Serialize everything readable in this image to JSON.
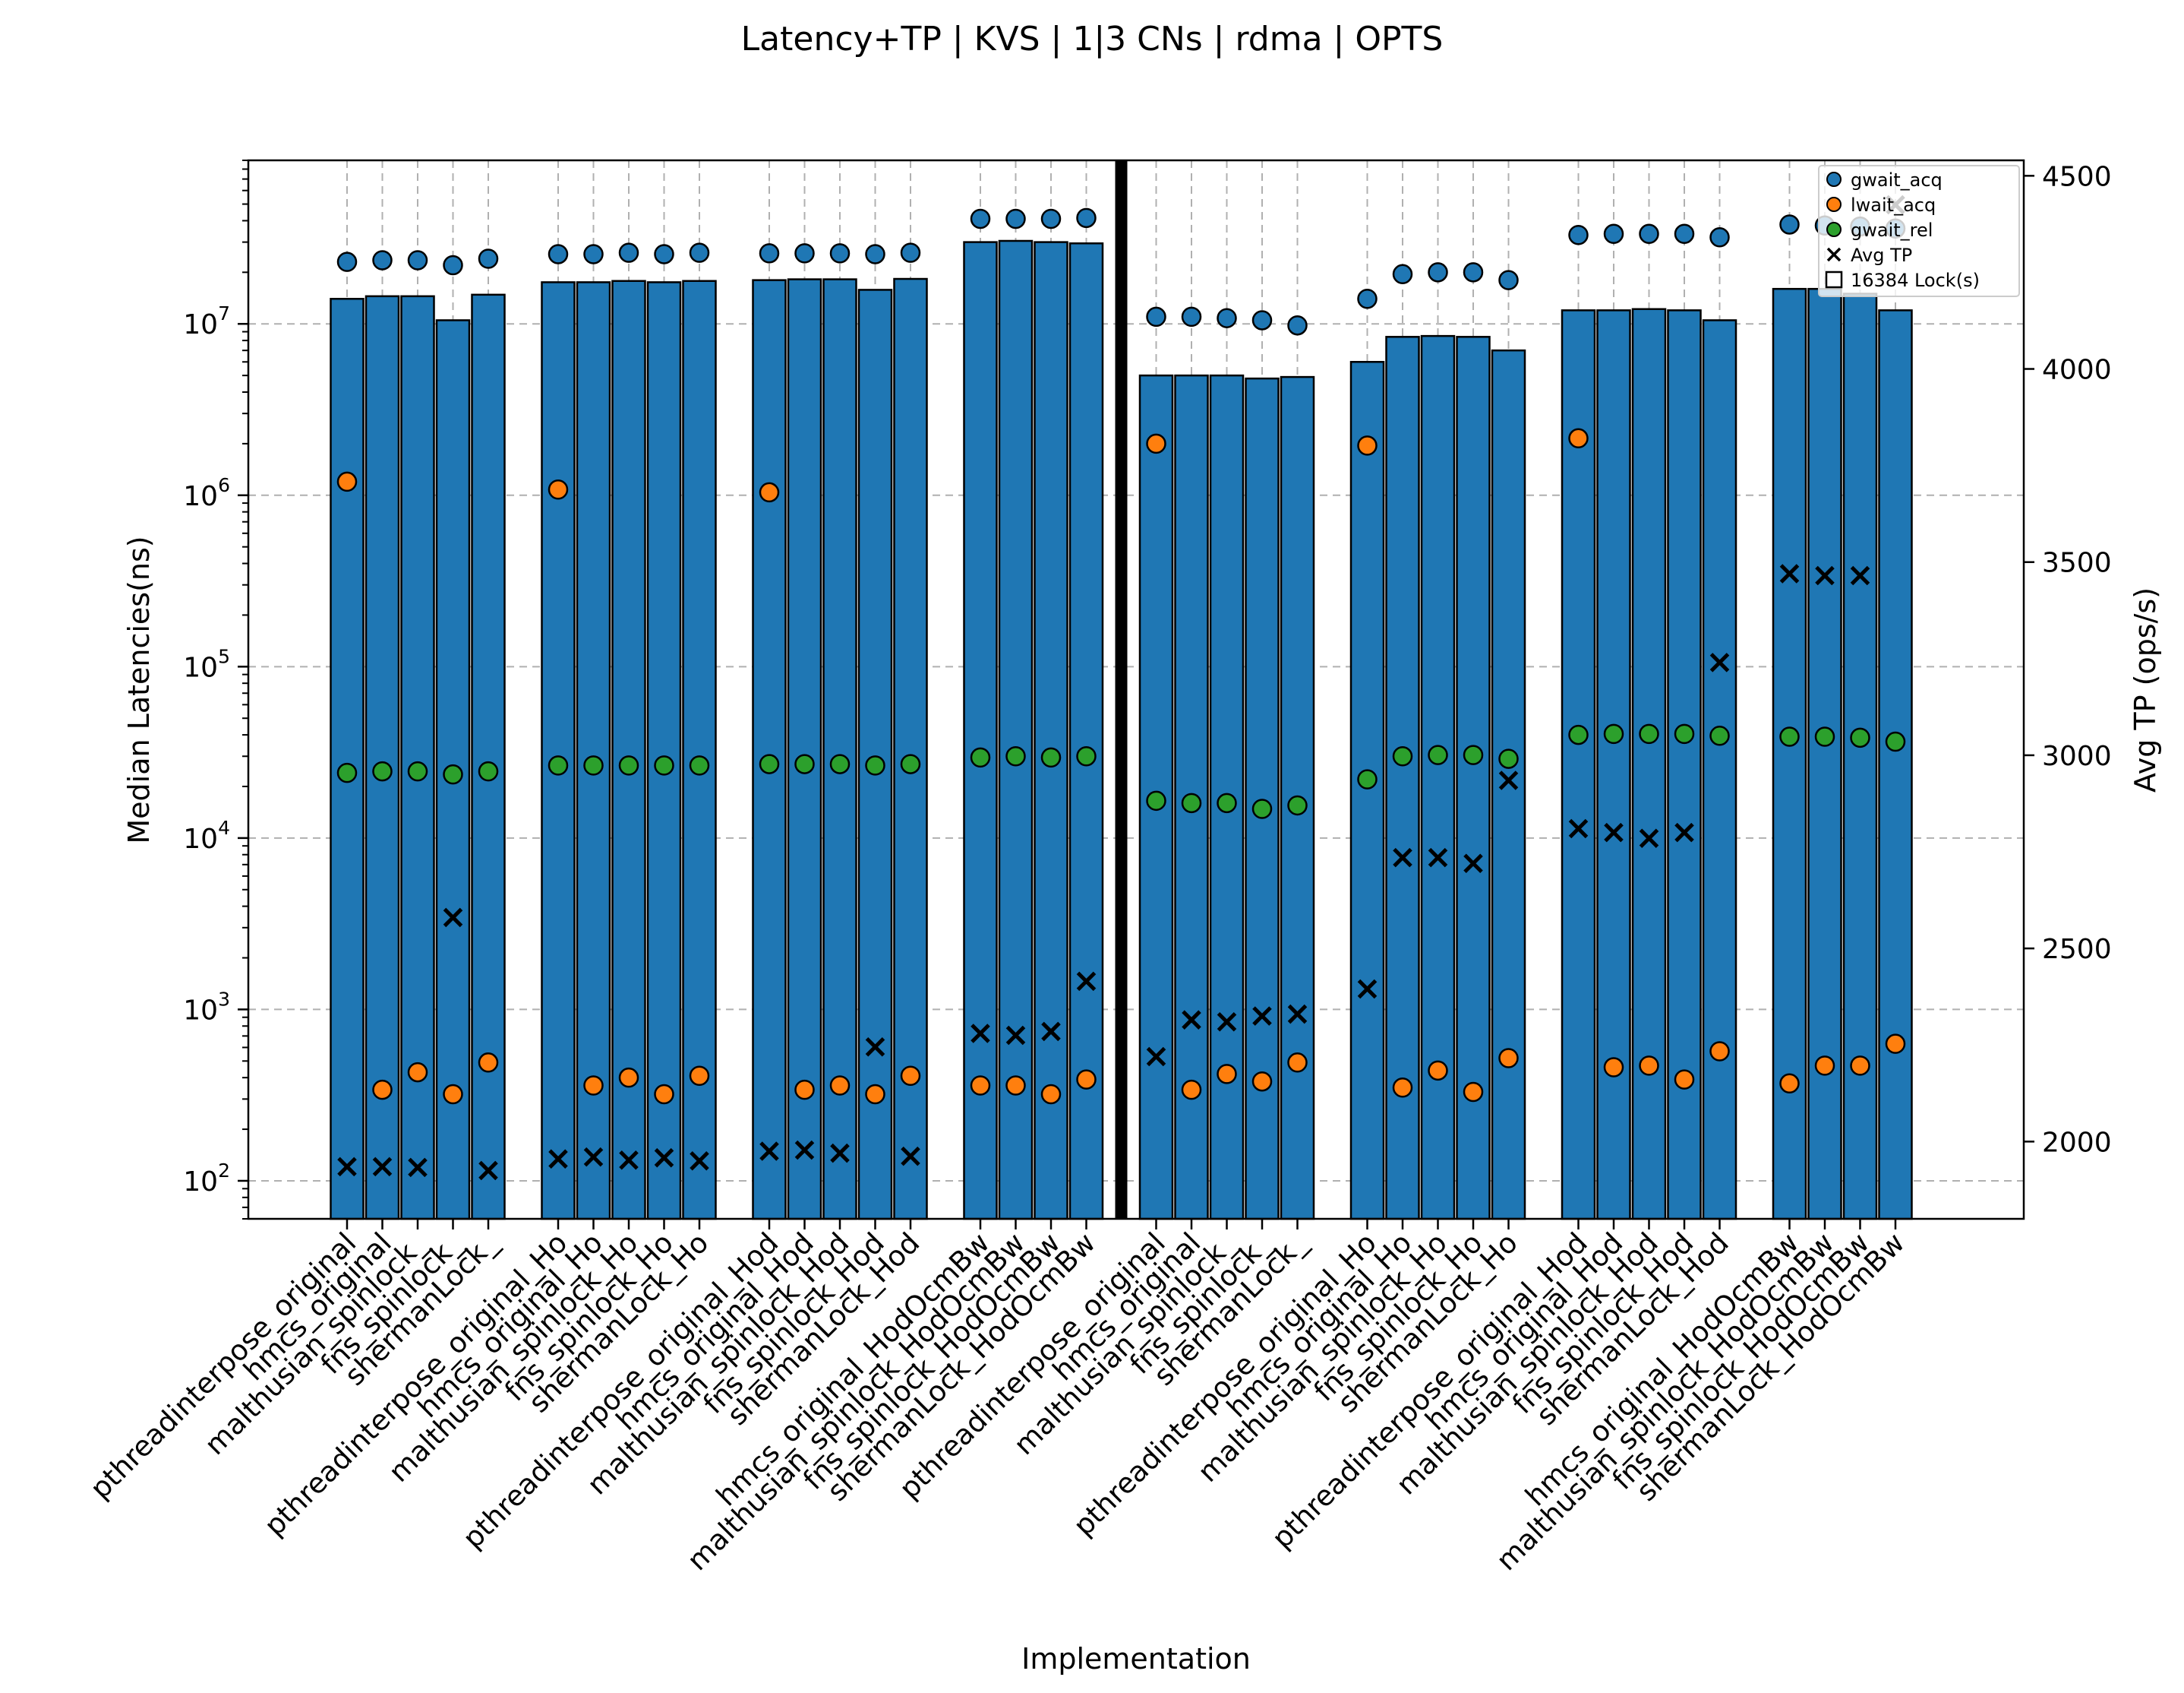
{
  "chart_data": {
    "type": "bar",
    "title": "Latency+TP | KVS | 1|3 CNs | rdma | OPTS",
    "xlabel": "Implementation",
    "ylabel": "Median Latencies(ns)",
    "y2label": "Avg TP (ops/s)",
    "yscale": "log",
    "ylim": [
      60,
      90000000
    ],
    "y_ticks": [
      100,
      1000,
      10000,
      100000,
      1000000,
      10000000
    ],
    "y_tick_labels": [
      {
        "b": "10",
        "e": "2"
      },
      {
        "b": "10",
        "e": "3"
      },
      {
        "b": "10",
        "e": "4"
      },
      {
        "b": "10",
        "e": "5"
      },
      {
        "b": "10",
        "e": "6"
      },
      {
        "b": "10",
        "e": "7"
      }
    ],
    "y2lim": [
      1800,
      4540
    ],
    "y2_ticks": [
      2000,
      2500,
      3000,
      3500,
      4000,
      4500
    ],
    "y2_tick_labels": [
      "2000",
      "2500",
      "3000",
      "3500",
      "4000",
      "4500"
    ],
    "grid": true,
    "legend_position": "top-right",
    "legend": [
      {
        "label": "gwait_acq",
        "marker": "circle",
        "color": "#1f77b4"
      },
      {
        "label": "lwait_acq",
        "marker": "circle",
        "color": "#ff7f0e"
      },
      {
        "label": "gwait_rel",
        "marker": "circle",
        "color": "#2ca02c"
      },
      {
        "label": "Avg TP",
        "marker": "x",
        "color": "#000000"
      },
      {
        "label": "16384 Lock(s)",
        "marker": "square",
        "color": "#ffffff"
      }
    ],
    "colors": {
      "bar": "#1f77b4",
      "gwait_acq": "#1f77b4",
      "lwait_acq": "#ff7f0e",
      "gwait_rel": "#2ca02c",
      "avg_tp": "#000000"
    },
    "divider_after_group": 3,
    "groups": [
      {
        "categories": [
          "pthreadinterpose_original",
          "hmcs_original",
          "malthusian_spinlock_",
          "fns_spinlock_",
          "shermanLock_"
        ],
        "bar_values": [
          14000000,
          14500000,
          14500000,
          10500000,
          14800000
        ],
        "gwait_acq": [
          23000000,
          23500000,
          23500000,
          22000000,
          24000000
        ],
        "lwait_acq": [
          1200000,
          340,
          430,
          320,
          490
        ],
        "gwait_rel": [
          24000,
          24500,
          24500,
          23500,
          24500
        ],
        "avg_tp": [
          1935,
          1935,
          1933,
          2580,
          1925
        ]
      },
      {
        "categories": [
          "pthreadinterpose_original_Ho",
          "hmcs_original_Ho",
          "malthusian_spinlock_Ho",
          "fns_spinlock_Ho",
          "shermanLock_Ho"
        ],
        "bar_values": [
          17500000,
          17500000,
          17800000,
          17500000,
          17800000
        ],
        "gwait_acq": [
          25500000,
          25500000,
          26000000,
          25500000,
          26000000
        ],
        "lwait_acq": [
          1080000,
          360,
          400,
          320,
          410
        ],
        "gwait_rel": [
          26500,
          26500,
          26500,
          26500,
          26500
        ],
        "avg_tp": [
          1955,
          1960,
          1952,
          1958,
          1950
        ]
      },
      {
        "categories": [
          "pthreadinterpose_original_Hod",
          "hmcs_original_Hod",
          "malthusian_spinlock_Hod",
          "fns_spinlock_Hod",
          "shermanLock_Hod"
        ],
        "bar_values": [
          18000000,
          18200000,
          18200000,
          15800000,
          18300000
        ],
        "gwait_acq": [
          25800000,
          25800000,
          25800000,
          25500000,
          26000000
        ],
        "lwait_acq": [
          1040000,
          340,
          360,
          320,
          410
        ],
        "gwait_rel": [
          27000,
          27000,
          27000,
          26500,
          27000
        ],
        "avg_tp": [
          1975,
          1978,
          1970,
          2245,
          1962
        ]
      },
      {
        "categories": [
          "hmcs_original_HodOcmBw",
          "malthusian_spinlock_HodOcmBw",
          "fns_spinlock_HodOcmBw",
          "shermanLock_HodOcmBw"
        ],
        "bar_values": [
          30000000,
          30500000,
          30000000,
          29500000
        ],
        "gwait_acq": [
          41000000,
          41000000,
          41000000,
          41500000
        ],
        "lwait_acq": [
          360,
          360,
          320,
          390
        ],
        "gwait_rel": [
          29500,
          30000,
          29500,
          30000
        ],
        "avg_tp": [
          2280,
          2275,
          2285,
          2415
        ]
      },
      {
        "categories": [
          "pthreadinterpose_original",
          "hmcs_original",
          "malthusian_spinlock_",
          "fns_spinlock_",
          "shermanLock_"
        ],
        "bar_values": [
          5000000,
          5000000,
          5000000,
          4800000,
          4900000
        ],
        "gwait_acq": [
          11000000,
          11000000,
          10800000,
          10500000,
          9800000
        ],
        "lwait_acq": [
          2000000,
          340,
          420,
          380,
          490
        ],
        "gwait_rel": [
          16500,
          16000,
          16000,
          14800,
          15500
        ],
        "avg_tp": [
          2220,
          2315,
          2310,
          2325,
          2330
        ]
      },
      {
        "categories": [
          "pthreadinterpose_original_Ho",
          "hmcs_original_Ho",
          "malthusian_spinlock_Ho",
          "fns_spinlock_Ho",
          "shermanLock_Ho"
        ],
        "bar_values": [
          6000000,
          8400000,
          8500000,
          8400000,
          7000000
        ],
        "gwait_acq": [
          14000000,
          19500000,
          20000000,
          20000000,
          18000000
        ],
        "lwait_acq": [
          1950000,
          350,
          440,
          330,
          520
        ],
        "gwait_rel": [
          22000,
          30000,
          30500,
          30500,
          29000
        ],
        "avg_tp": [
          2395,
          2735,
          2735,
          2720,
          2935
        ]
      },
      {
        "categories": [
          "pthreadinterpose_original_Hod",
          "hmcs_original_Hod",
          "malthusian_spinlock_Hod",
          "fns_spinlock_Hod",
          "shermanLock_Hod"
        ],
        "bar_values": [
          12000000,
          12000000,
          12200000,
          12000000,
          10500000
        ],
        "gwait_acq": [
          33000000,
          33500000,
          33500000,
          33500000,
          32000000
        ],
        "lwait_acq": [
          2150000,
          460,
          470,
          390,
          570
        ],
        "gwait_rel": [
          40000,
          40500,
          40500,
          40500,
          39500
        ],
        "avg_tp": [
          2810,
          2800,
          2785,
          2800,
          3240
        ]
      },
      {
        "categories": [
          "hmcs_original_HodOcmBw",
          "malthusian_spinlock_HodOcmBw",
          "fns_spinlock_HodOcmBw",
          "shermanLock_HodOcmBw"
        ],
        "bar_values": [
          16000000,
          16000000,
          15000000,
          12000000
        ],
        "gwait_acq": [
          38000000,
          37500000,
          37000000,
          36000000
        ],
        "lwait_acq": [
          370,
          470,
          470,
          630
        ],
        "gwait_rel": [
          39000,
          39000,
          38500,
          36500
        ],
        "avg_tp": [
          3470,
          3465,
          3465,
          4425
        ]
      }
    ]
  }
}
